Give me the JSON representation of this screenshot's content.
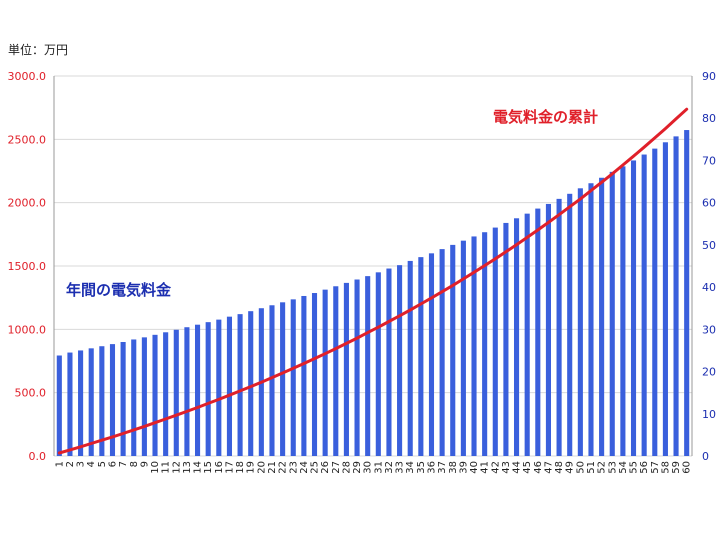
{
  "chart_data": {
    "type": "bar",
    "unit_label": "単位：万円",
    "categories": [
      "1",
      "2",
      "3",
      "4",
      "5",
      "6",
      "7",
      "8",
      "9",
      "10",
      "11",
      "12",
      "13",
      "14",
      "15",
      "16",
      "17",
      "18",
      "19",
      "20",
      "21",
      "22",
      "23",
      "24",
      "25",
      "26",
      "27",
      "28",
      "29",
      "30",
      "31",
      "32",
      "33",
      "34",
      "35",
      "36",
      "37",
      "38",
      "39",
      "40",
      "41",
      "42",
      "43",
      "44",
      "45",
      "46",
      "47",
      "48",
      "49",
      "50",
      "51",
      "52",
      "53",
      "54",
      "55",
      "56",
      "57",
      "58",
      "59",
      "60"
    ],
    "series": [
      {
        "name": "年間の電気料金",
        "type": "bar",
        "axis": "right",
        "color": "#3a5fdc",
        "values": [
          23.8,
          24.5,
          25.0,
          25.5,
          26.0,
          26.5,
          27.0,
          27.6,
          28.1,
          28.7,
          29.3,
          29.9,
          30.5,
          31.1,
          31.7,
          32.3,
          33.0,
          33.6,
          34.3,
          35.0,
          35.7,
          36.4,
          37.1,
          37.9,
          38.6,
          39.4,
          40.2,
          41.0,
          41.8,
          42.6,
          43.5,
          44.4,
          45.2,
          46.2,
          47.1,
          48.0,
          49.0,
          50.0,
          51.0,
          52.0,
          53.0,
          54.1,
          55.2,
          56.3,
          57.4,
          58.6,
          59.7,
          60.9,
          62.1,
          63.4,
          64.6,
          65.9,
          67.3,
          68.6,
          70.0,
          71.4,
          72.8,
          74.3,
          75.7,
          77.2
        ]
      },
      {
        "name": "電気料金の累計",
        "type": "line",
        "axis": "left",
        "color": "#e0202a",
        "values": [
          24,
          48,
          73,
          99,
          125,
          151,
          178,
          206,
          234,
          263,
          292,
          322,
          352,
          383,
          415,
          447,
          480,
          514,
          548,
          583,
          619,
          655,
          692,
          730,
          769,
          808,
          848,
          889,
          931,
          974,
          1017,
          1062,
          1107,
          1153,
          1200,
          1248,
          1297,
          1347,
          1398,
          1450,
          1503,
          1557,
          1612,
          1668,
          1726,
          1784,
          1844,
          1905,
          1967,
          2030,
          2095,
          2161,
          2228,
          2297,
          2367,
          2438,
          2511,
          2585,
          2661,
          2738
        ]
      }
    ],
    "y_left": {
      "min": 0,
      "max": 3000,
      "ticks": [
        "0.0",
        "500.0",
        "1000.0",
        "1500.0",
        "2000.0",
        "2500.0",
        "3000.0"
      ],
      "color": "#e0202a"
    },
    "y_right": {
      "min": 0,
      "max": 90,
      "ticks": [
        "0",
        "10",
        "20",
        "30",
        "40",
        "50",
        "60",
        "70",
        "80",
        "90"
      ],
      "color": "#1c2fb0"
    },
    "grid": true
  }
}
